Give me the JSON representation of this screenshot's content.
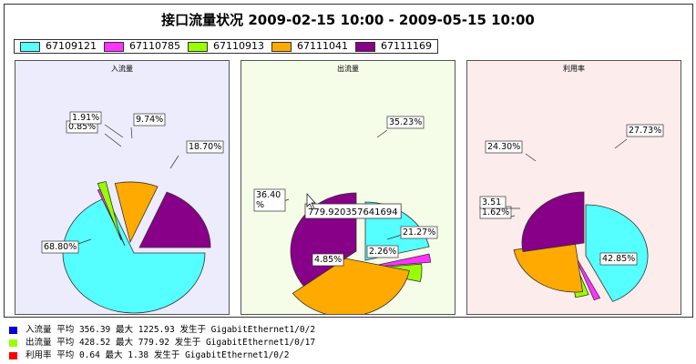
{
  "title": "接口流量状况 2009-02-15 10:00 - 2009-05-15 10:00",
  "legend": [
    {
      "name": "67109121",
      "color": "#55ffff"
    },
    {
      "name": "67110785",
      "color": "#ff33ff"
    },
    {
      "name": "67110913",
      "color": "#99ff00"
    },
    {
      "name": "67111041",
      "color": "#ffaa00"
    },
    {
      "name": "67111169",
      "color": "#880088"
    }
  ],
  "chart_data": [
    {
      "type": "pie",
      "title": "入流量",
      "background": "#ececfc",
      "slices": [
        {
          "name": "67109121",
          "value": 68.8,
          "label": "68.80%"
        },
        {
          "name": "67110785",
          "value": 0.85,
          "label": "0.85%"
        },
        {
          "name": "67110913",
          "value": 1.91,
          "label": "1.91%"
        },
        {
          "name": "67111041",
          "value": 9.74,
          "label": "9.74%"
        },
        {
          "name": "67111169",
          "value": 18.7,
          "label": "18.70%"
        }
      ]
    },
    {
      "type": "pie",
      "title": "出流量",
      "background": "#f5fce8",
      "tooltip": "779.920357641694",
      "slices": [
        {
          "name": "67109121",
          "value": 21.27,
          "label": "21.27%"
        },
        {
          "name": "67110785",
          "value": 2.26,
          "label": "2.26%"
        },
        {
          "name": "67110913",
          "value": 4.85,
          "label": "4.85%"
        },
        {
          "name": "67111041",
          "value": 36.4,
          "label": "36.40\n%"
        },
        {
          "name": "67111169",
          "value": 35.23,
          "label": "35.23%"
        }
      ]
    },
    {
      "type": "pie",
      "title": "利用率",
      "background": "#fcecec",
      "slices": [
        {
          "name": "67109121",
          "value": 42.85,
          "label": "42.85%"
        },
        {
          "name": "67110785",
          "value": 1.62,
          "label": "1.62%"
        },
        {
          "name": "67110913",
          "value": 3.51,
          "label": "3.51"
        },
        {
          "name": "67111041",
          "value": 24.3,
          "label": "24.30%"
        },
        {
          "name": "67111169",
          "value": 27.73,
          "label": "27.73%"
        }
      ]
    }
  ],
  "footer": [
    {
      "color": "#0000dd",
      "text": "入流量  平均  356.39  最大  1225.93  发生于  GigabitEthernet1/0/2"
    },
    {
      "color": "#99ff00",
      "text": "出流量  平均  428.52  最大  779.92  发生于  GigabitEthernet1/0/17"
    },
    {
      "color": "#ff0000",
      "text": "利用率  平均  0.64  最大  1.38  发生于  GigabitEthernet1/0/2"
    }
  ]
}
